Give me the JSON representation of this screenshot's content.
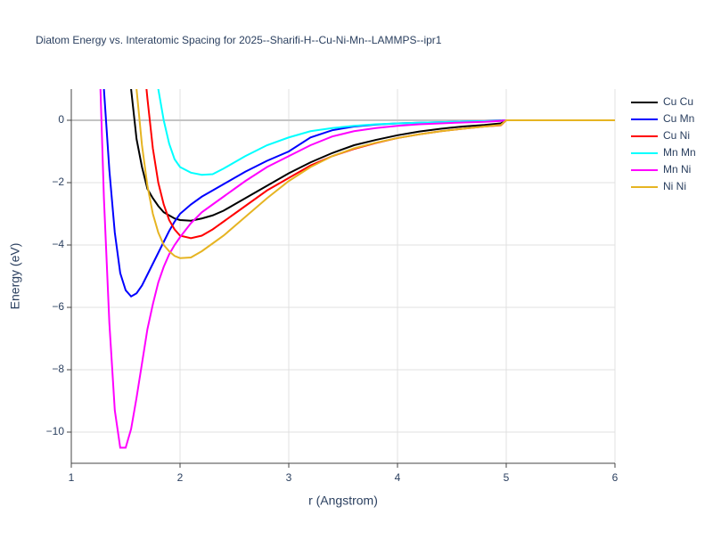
{
  "chart_data": {
    "type": "line",
    "title": "Diatom Energy vs. Interatomic Spacing for 2025--Sharifi-H--Cu-Ni-Mn--LAMMPS--ipr1",
    "x_label": "r (Angstrom)",
    "y_label": "Energy (eV)",
    "x": [
      1.25,
      1.3,
      1.35,
      1.4,
      1.45,
      1.5,
      1.55,
      1.6,
      1.65,
      1.7,
      1.75,
      1.8,
      1.85,
      1.9,
      1.95,
      2.0,
      2.1,
      2.2,
      2.3,
      2.4,
      2.5,
      2.6,
      2.8,
      3.0,
      3.2,
      3.4,
      3.6,
      3.8,
      4.0,
      4.2,
      4.4,
      4.6,
      4.8,
      4.95,
      5.0,
      5.5,
      6.0
    ],
    "series": [
      {
        "name": "Cu Cu",
        "color": "#000000",
        "values": [
          null,
          null,
          null,
          null,
          null,
          3,
          1.0,
          -0.6,
          -1.5,
          -2.2,
          -2.5,
          -2.75,
          -2.95,
          -3.05,
          -3.15,
          -3.2,
          -3.22,
          -3.15,
          -3.05,
          -2.9,
          -2.7,
          -2.5,
          -2.1,
          -1.7,
          -1.35,
          -1.05,
          -0.8,
          -0.63,
          -0.48,
          -0.36,
          -0.27,
          -0.2,
          -0.15,
          -0.1,
          0,
          0,
          0
        ]
      },
      {
        "name": "Cu Mn",
        "color": "#0000ff",
        "values": [
          null,
          1.0,
          -1.6,
          -3.6,
          -4.9,
          -5.45,
          -5.65,
          -5.55,
          -5.3,
          -4.95,
          -4.6,
          -4.25,
          -3.9,
          -3.55,
          -3.25,
          -3.0,
          -2.7,
          -2.45,
          -2.25,
          -2.05,
          -1.85,
          -1.65,
          -1.3,
          -1.0,
          -0.55,
          -0.32,
          -0.2,
          -0.14,
          -0.1,
          -0.08,
          -0.06,
          -0.04,
          -0.03,
          -0.01,
          0,
          0,
          0
        ]
      },
      {
        "name": "Cu Ni",
        "color": "#ff0000",
        "values": [
          null,
          null,
          null,
          null,
          null,
          null,
          null,
          null,
          2.5,
          0.7,
          -0.9,
          -2.0,
          -2.7,
          -3.2,
          -3.5,
          -3.7,
          -3.78,
          -3.7,
          -3.5,
          -3.25,
          -3.0,
          -2.75,
          -2.25,
          -1.85,
          -1.45,
          -1.15,
          -0.92,
          -0.73,
          -0.57,
          -0.45,
          -0.35,
          -0.27,
          -0.2,
          -0.16,
          0,
          0,
          0
        ]
      },
      {
        "name": "Mn Mn",
        "color": "#00ffff",
        "values": [
          null,
          null,
          null,
          null,
          null,
          null,
          null,
          null,
          null,
          null,
          2.5,
          1.0,
          0,
          -0.75,
          -1.25,
          -1.5,
          -1.68,
          -1.75,
          -1.73,
          -1.55,
          -1.35,
          -1.15,
          -0.8,
          -0.55,
          -0.35,
          -0.25,
          -0.18,
          -0.13,
          -0.1,
          -0.08,
          -0.06,
          -0.04,
          -0.03,
          -0.02,
          0,
          0,
          0
        ]
      },
      {
        "name": "Mn Ni",
        "color": "#ff00ff",
        "values": [
          3,
          -2.5,
          -6.5,
          -9.3,
          -10.5,
          -10.5,
          -9.9,
          -8.9,
          -7.8,
          -6.7,
          -5.9,
          -5.2,
          -4.7,
          -4.3,
          -4.0,
          -3.75,
          -3.3,
          -2.95,
          -2.7,
          -2.45,
          -2.2,
          -1.95,
          -1.5,
          -1.15,
          -0.8,
          -0.52,
          -0.35,
          -0.25,
          -0.18,
          -0.13,
          -0.1,
          -0.07,
          -0.05,
          -0.02,
          0,
          0,
          0
        ]
      },
      {
        "name": "Ni Ni",
        "color": "#e6b422",
        "values": [
          null,
          null,
          null,
          null,
          null,
          null,
          3,
          1.0,
          -0.8,
          -2.1,
          -3.0,
          -3.6,
          -4.0,
          -4.2,
          -4.35,
          -4.42,
          -4.4,
          -4.2,
          -3.95,
          -3.7,
          -3.4,
          -3.1,
          -2.5,
          -1.95,
          -1.5,
          -1.15,
          -0.9,
          -0.72,
          -0.57,
          -0.45,
          -0.35,
          -0.27,
          -0.2,
          -0.15,
          0,
          0,
          0
        ]
      }
    ],
    "xlim": [
      1,
      6
    ],
    "xticks": [
      1,
      2,
      3,
      4,
      5,
      6
    ],
    "ylim": [
      -11,
      1
    ],
    "yticks": [
      {
        "value": -10,
        "label": "−10"
      },
      {
        "value": -8,
        "label": "−8"
      },
      {
        "value": -6,
        "label": "−6"
      },
      {
        "value": -4,
        "label": "−4"
      },
      {
        "value": -2,
        "label": "−2"
      },
      0
    ],
    "grid": true,
    "legend": "right"
  }
}
